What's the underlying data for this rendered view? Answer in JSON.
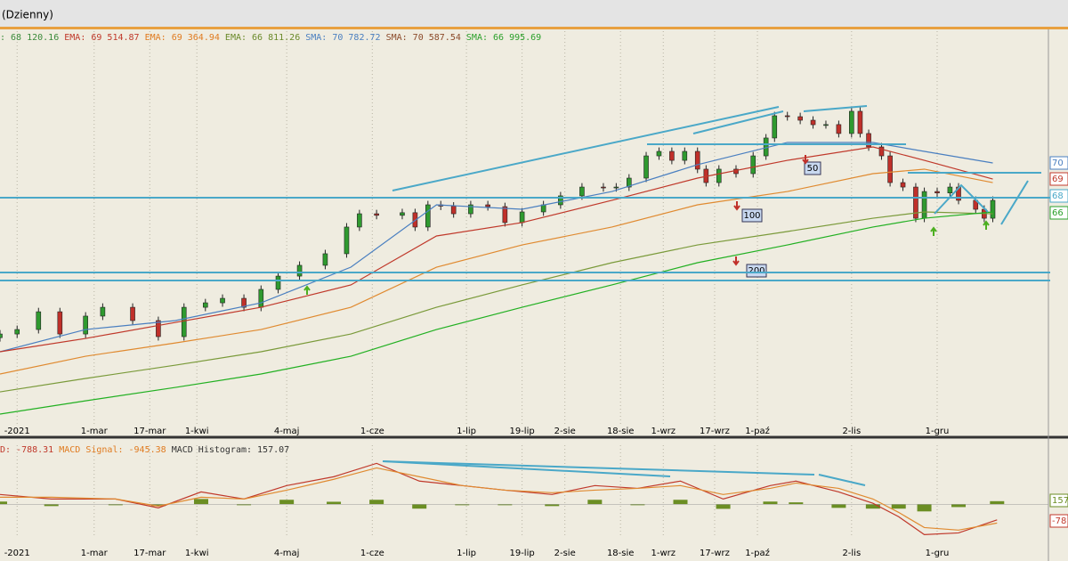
{
  "header": {
    "title": "(Dzienny)"
  },
  "chart_data": [
    {
      "type": "candlestick",
      "legend": [
        {
          "text": ": 68 120.16",
          "color": "#3a8a3a"
        },
        {
          "text": "EMA: 69 514.87",
          "color": "#c0392b"
        },
        {
          "text": "EMA: 69 364.94",
          "color": "#e07b20"
        },
        {
          "text": "EMA: 66 811.26",
          "color": "#6a8a2a"
        },
        {
          "text": "SMA: 70 782.72",
          "color": "#4a7fc0"
        },
        {
          "text": "SMA: 70 587.54",
          "color": "#8b4a2a"
        },
        {
          "text": "SMA: 66 995.69",
          "color": "#2aa02a"
        }
      ],
      "x": [
        0,
        4,
        9,
        14,
        20,
        24,
        31,
        37,
        43,
        48,
        52,
        57,
        61,
        65,
        70,
        76,
        81,
        84,
        88,
        94,
        97,
        100,
        103,
        106,
        110,
        114,
        118,
        122,
        127,
        131,
        136,
        141,
        144,
        147,
        151,
        154,
        157,
        160,
        163,
        165,
        168,
        172,
        176,
        179,
        181,
        184,
        187,
        190,
        193,
        196,
        199,
        201,
        203,
        206,
        208,
        211,
        214,
        216,
        219,
        222,
        224,
        228,
        230,
        232
      ],
      "open": [
        57500,
        57780,
        58120,
        59470,
        57780,
        59140,
        59810,
        58800,
        57580,
        59810,
        60150,
        60490,
        59810,
        61170,
        62180,
        63000,
        63880,
        65910,
        66920,
        66800,
        67000,
        65910,
        67600,
        67500,
        66920,
        67600,
        67460,
        66250,
        67060,
        67600,
        68280,
        68950,
        68900,
        68950,
        69630,
        71320,
        71660,
        70980,
        71660,
        70310,
        69290,
        70310,
        69970,
        71320,
        72680,
        74370,
        74300,
        74030,
        73690,
        73700,
        73020,
        74710,
        73020,
        72000,
        71320,
        69290,
        68950,
        66580,
        68610,
        68500,
        68950,
        67940,
        67260,
        66580
      ],
      "high": [
        58080,
        58420,
        59770,
        59770,
        59440,
        60110,
        60110,
        59100,
        60110,
        60450,
        60790,
        60790,
        61470,
        62480,
        63300,
        64180,
        66210,
        67220,
        67220,
        67300,
        67300,
        67900,
        67900,
        67800,
        67900,
        67900,
        67760,
        67360,
        67900,
        68580,
        69250,
        69250,
        69250,
        69930,
        71620,
        71960,
        71960,
        71960,
        71960,
        70610,
        70610,
        70610,
        71620,
        72980,
        74670,
        74670,
        74600,
        74330,
        74000,
        74000,
        75010,
        75010,
        73320,
        72300,
        71620,
        69590,
        69250,
        68910,
        68910,
        69250,
        69250,
        68240,
        67560,
        68240
      ],
      "low": [
        57200,
        57480,
        57820,
        57480,
        57480,
        58840,
        58500,
        57280,
        57280,
        59510,
        59850,
        59510,
        59510,
        60870,
        61880,
        62700,
        63580,
        65610,
        66500,
        66500,
        65610,
        65610,
        67200,
        66620,
        66620,
        67160,
        65950,
        65950,
        66760,
        67300,
        67980,
        68600,
        68600,
        68650,
        69330,
        71020,
        70680,
        70680,
        70010,
        68990,
        68990,
        69670,
        69670,
        71020,
        72380,
        74000,
        73730,
        73390,
        73390,
        72720,
        72720,
        72720,
        71700,
        71020,
        68990,
        68650,
        66280,
        66280,
        68200,
        68200,
        67640,
        66960,
        66280,
        66280
      ],
      "close": [
        57780,
        58120,
        59470,
        57780,
        59140,
        59810,
        58800,
        57580,
        59810,
        60150,
        60490,
        59810,
        61170,
        62180,
        63000,
        63880,
        65910,
        66920,
        66800,
        67000,
        65910,
        67600,
        67500,
        66920,
        67600,
        67460,
        66250,
        67060,
        67600,
        68280,
        68950,
        68900,
        68950,
        69630,
        71320,
        71660,
        70980,
        71660,
        70310,
        69290,
        70310,
        69970,
        71320,
        72680,
        74370,
        74300,
        74030,
        73690,
        73700,
        73020,
        74710,
        73020,
        72000,
        71320,
        69290,
        68950,
        66580,
        68610,
        68500,
        68950,
        67940,
        67260,
        66580,
        67940
      ],
      "up_color": "#2f9a2f",
      "down_color": "#c0302a",
      "lines": [
        {
          "color": "#4a7fc0",
          "x": [
            0,
            20,
            41,
            61,
            82,
            102,
            122,
            143,
            163,
            184,
            204,
            216,
            232
          ],
          "values": [
            56430,
            58120,
            58800,
            60150,
            62860,
            67600,
            67260,
            68610,
            70650,
            72340,
            72340,
            71660,
            70780
          ]
        },
        {
          "color": "#c0392b",
          "x": [
            0,
            20,
            41,
            61,
            82,
            102,
            122,
            143,
            163,
            184,
            204,
            216,
            232
          ],
          "values": [
            56430,
            57440,
            58660,
            59810,
            61510,
            65230,
            66250,
            67940,
            69630,
            70980,
            72000,
            70980,
            69560
          ]
        },
        {
          "color": "#e08a30",
          "x": [
            0,
            20,
            41,
            61,
            82,
            102,
            122,
            143,
            163,
            184,
            204,
            216,
            232
          ],
          "values": [
            54740,
            56090,
            57100,
            58120,
            59810,
            62860,
            64550,
            65910,
            67600,
            68610,
            69970,
            70310,
            69290
          ]
        },
        {
          "color": "#7a9a3a",
          "x": [
            0,
            20,
            41,
            61,
            82,
            102,
            122,
            143,
            163,
            184,
            204,
            216,
            232
          ],
          "values": [
            53380,
            54400,
            55410,
            56430,
            57780,
            59810,
            61510,
            63200,
            64550,
            65570,
            66580,
            67060,
            66920
          ]
        },
        {
          "color": "#22b022",
          "x": [
            0,
            20,
            41,
            61,
            82,
            102,
            122,
            143,
            163,
            184,
            204,
            216,
            232
          ],
          "values": [
            51690,
            52700,
            53720,
            54740,
            56090,
            58120,
            59810,
            61510,
            63200,
            64550,
            65910,
            66580,
            67060
          ]
        }
      ],
      "xlim": [
        0,
        245
      ],
      "ylim": [
        50000,
        80800
      ],
      "xticks": [
        {
          "value": 4,
          "label": "-2021"
        },
        {
          "value": 22,
          "label": "1-mar"
        },
        {
          "value": 35,
          "label": "17-mar"
        },
        {
          "value": 46,
          "label": "1-kwi"
        },
        {
          "value": 67,
          "label": "4-maj"
        },
        {
          "value": 87,
          "label": "1-cze"
        },
        {
          "value": 109,
          "label": "1-lip"
        },
        {
          "value": 122,
          "label": "19-lip"
        },
        {
          "value": 132,
          "label": "2-sie"
        },
        {
          "value": 145,
          "label": "18-sie"
        },
        {
          "value": 155,
          "label": "1-wrz"
        },
        {
          "value": 167,
          "label": "17-wrz"
        },
        {
          "value": 177,
          "label": "1-paź"
        },
        {
          "value": 199,
          "label": "2-lis"
        },
        {
          "value": 219,
          "label": "1-gru"
        }
      ],
      "grid": true,
      "annotations": [
        "50",
        "100",
        "200"
      ],
      "price_tags": [
        "70",
        "69",
        "68",
        "66"
      ]
    },
    {
      "type": "macd",
      "legend": [
        {
          "text": "D: -788.31",
          "color": "#c0392b"
        },
        {
          "text": "MACD Signal: -945.38",
          "color": "#e07b20"
        },
        {
          "text": "MACD Histogram: 157.07",
          "color": "#333333"
        }
      ],
      "x": [
        0,
        12,
        27,
        37,
        47,
        57,
        67,
        78,
        88,
        98,
        108,
        118,
        129,
        139,
        149,
        159,
        169,
        180,
        186,
        196,
        204,
        210,
        216,
        224,
        233
      ],
      "series": [
        {
          "color": "#c0392b",
          "values": [
            500,
            270,
            270,
            -180,
            630,
            270,
            950,
            1400,
            2080,
            1180,
            950,
            720,
            500,
            950,
            810,
            1180,
            270,
            950,
            1180,
            630,
            50,
            -630,
            -1540,
            -1450,
            -790
          ]
        },
        {
          "color": "#e08a30",
          "values": [
            360,
            360,
            270,
            -90,
            360,
            270,
            720,
            1270,
            1850,
            1400,
            950,
            720,
            590,
            720,
            810,
            950,
            500,
            810,
            1080,
            810,
            270,
            -410,
            -1180,
            -1310,
            -950
          ]
        }
      ],
      "histogram": {
        "color": "#6b8e23",
        "values": [
          140,
          -90,
          0,
          -90,
          270,
          0,
          230,
          130,
          230,
          -220,
          0,
          0,
          -90,
          230,
          0,
          230,
          -230,
          140,
          100,
          -180,
          -220,
          -220,
          -360,
          -140,
          160
        ]
      },
      "xlim": [
        0,
        245
      ],
      "ylim": [
        -2200,
        3000
      ],
      "price_tags": [
        "157",
        "-78"
      ]
    }
  ]
}
